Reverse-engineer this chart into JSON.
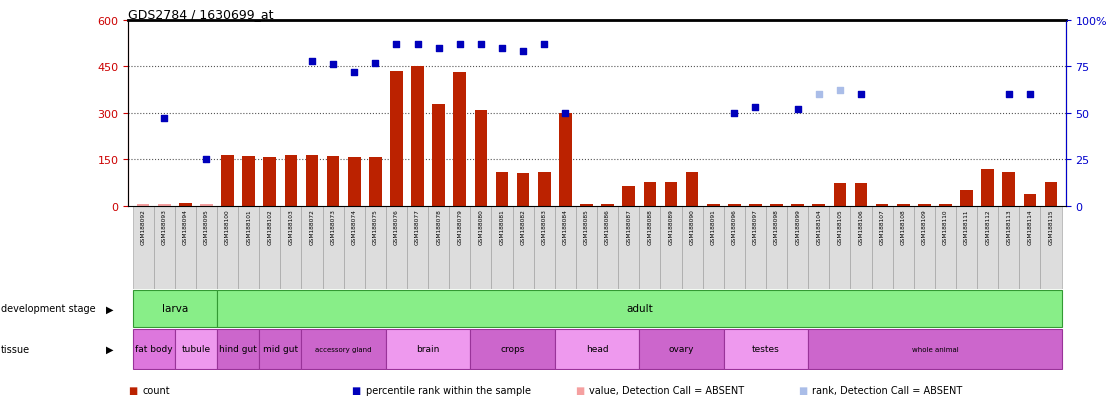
{
  "title": "GDS2784 / 1630699_at",
  "samples": [
    "GSM188092",
    "GSM188093",
    "GSM188094",
    "GSM188095",
    "GSM188100",
    "GSM188101",
    "GSM188102",
    "GSM188103",
    "GSM188072",
    "GSM188073",
    "GSM188074",
    "GSM188075",
    "GSM188076",
    "GSM188077",
    "GSM188078",
    "GSM188079",
    "GSM188080",
    "GSM188081",
    "GSM188082",
    "GSM188083",
    "GSM188084",
    "GSM188085",
    "GSM188086",
    "GSM188087",
    "GSM188088",
    "GSM188089",
    "GSM188090",
    "GSM188091",
    "GSM188096",
    "GSM188097",
    "GSM188098",
    "GSM188099",
    "GSM188104",
    "GSM188105",
    "GSM188106",
    "GSM188107",
    "GSM188108",
    "GSM188109",
    "GSM188110",
    "GSM188111",
    "GSM188112",
    "GSM188113",
    "GSM188114",
    "GSM188115"
  ],
  "counts": [
    5,
    5,
    10,
    5,
    165,
    162,
    157,
    163,
    163,
    162,
    158,
    157,
    435,
    450,
    328,
    433,
    308,
    110,
    107,
    110,
    300,
    5,
    5,
    65,
    78,
    78,
    108,
    5,
    5,
    5,
    5,
    5,
    5,
    73,
    73,
    5,
    5,
    5,
    5,
    50,
    118,
    108,
    38,
    78
  ],
  "absent_count_indices": [
    0,
    1,
    3
  ],
  "rank_vals": [
    null,
    47,
    null,
    25,
    null,
    null,
    null,
    null,
    78,
    76,
    72,
    77,
    87,
    87,
    85,
    87,
    87,
    85,
    83,
    87,
    50,
    null,
    null,
    null,
    null,
    null,
    null,
    null,
    50,
    53,
    null,
    52,
    60,
    62,
    60,
    null,
    null,
    null,
    null,
    null,
    null,
    60,
    60,
    null
  ],
  "absent_rank_indices": [
    32,
    33
  ],
  "ylim_left": [
    0,
    600
  ],
  "ylim_right": [
    0,
    100
  ],
  "yticks_left": [
    0,
    150,
    300,
    450,
    600
  ],
  "yticks_right": [
    0,
    25,
    50,
    75,
    100
  ],
  "bar_color": "#bb2200",
  "rank_color": "#0000bb",
  "absent_bar_color": "#f5a0a0",
  "absent_rank_color": "#aabde8",
  "grid_color": "#555555",
  "dev_ranges": [
    {
      "label": "larva",
      "s": 0,
      "e": 3,
      "color": "#88ee88"
    },
    {
      "label": "adult",
      "s": 4,
      "e": 43,
      "color": "#88ee88"
    }
  ],
  "tissue_ranges": [
    {
      "label": "fat body",
      "s": 0,
      "e": 1,
      "color": "#dd77dd"
    },
    {
      "label": "tubule",
      "s": 2,
      "e": 3,
      "color": "#ee99ee"
    },
    {
      "label": "hind gut",
      "s": 4,
      "e": 5,
      "color": "#cc66cc"
    },
    {
      "label": "mid gut",
      "s": 6,
      "e": 7,
      "color": "#cc66cc"
    },
    {
      "label": "accessory gland",
      "s": 8,
      "e": 11,
      "color": "#cc66cc"
    },
    {
      "label": "brain",
      "s": 12,
      "e": 15,
      "color": "#ee99ee"
    },
    {
      "label": "crops",
      "s": 16,
      "e": 19,
      "color": "#cc66cc"
    },
    {
      "label": "head",
      "s": 20,
      "e": 23,
      "color": "#ee99ee"
    },
    {
      "label": "ovary",
      "s": 24,
      "e": 27,
      "color": "#cc66cc"
    },
    {
      "label": "testes",
      "s": 28,
      "e": 31,
      "color": "#ee99ee"
    },
    {
      "label": "whole animal",
      "s": 32,
      "e": 43,
      "color": "#cc66cc"
    }
  ]
}
